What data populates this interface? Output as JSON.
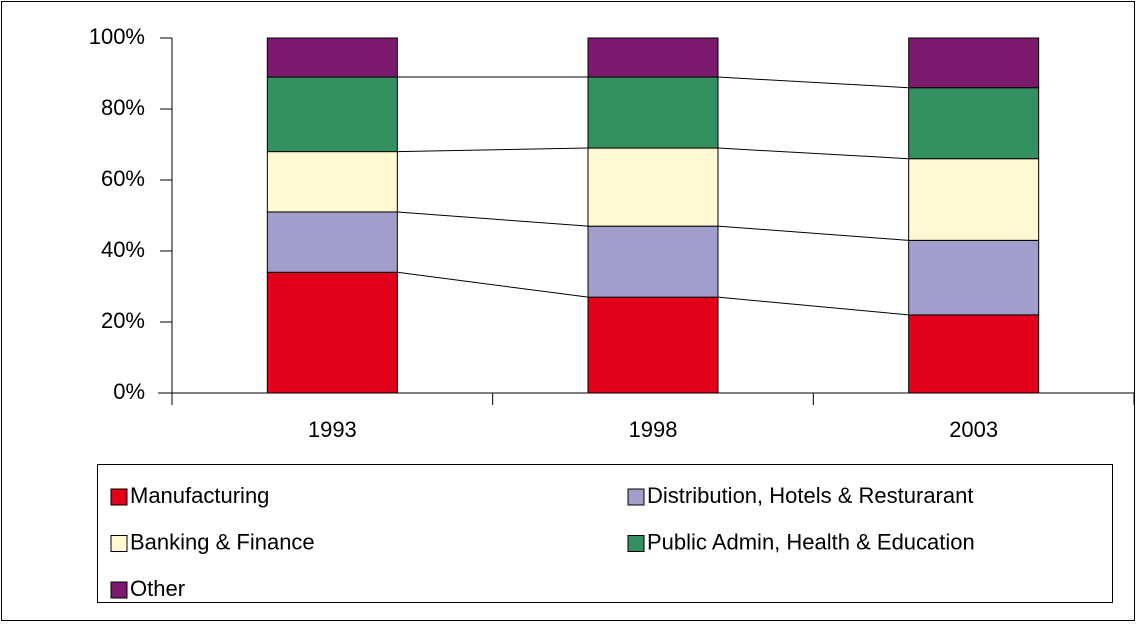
{
  "chart_data": {
    "type": "stacked-bar-100",
    "categories": [
      "1993",
      "1998",
      "2003"
    ],
    "series": [
      {
        "name": "Manufacturing",
        "color": "#e2001a",
        "values": [
          34,
          27,
          22
        ]
      },
      {
        "name": "Distribution, Hotels & Resturarant",
        "color": "#a09fcb",
        "values": [
          17,
          20,
          21
        ]
      },
      {
        "name": "Banking & Finance",
        "color": "#fff8d0",
        "values": [
          17,
          22,
          23
        ]
      },
      {
        "name": "Public Admin, Health & Education",
        "color": "#339060",
        "values": [
          21,
          20,
          20
        ]
      },
      {
        "name": "Other",
        "color": "#7b1a6e",
        "values": [
          11,
          11,
          14
        ]
      }
    ],
    "ylim": [
      0,
      100
    ],
    "yticks": [
      {
        "value": 0,
        "label": "0%"
      },
      {
        "value": 20,
        "label": "20%"
      },
      {
        "value": 40,
        "label": "40%"
      },
      {
        "value": 60,
        "label": "60%"
      },
      {
        "value": 80,
        "label": "80%"
      },
      {
        "value": 100,
        "label": "100%"
      }
    ],
    "legend": "bottom"
  }
}
